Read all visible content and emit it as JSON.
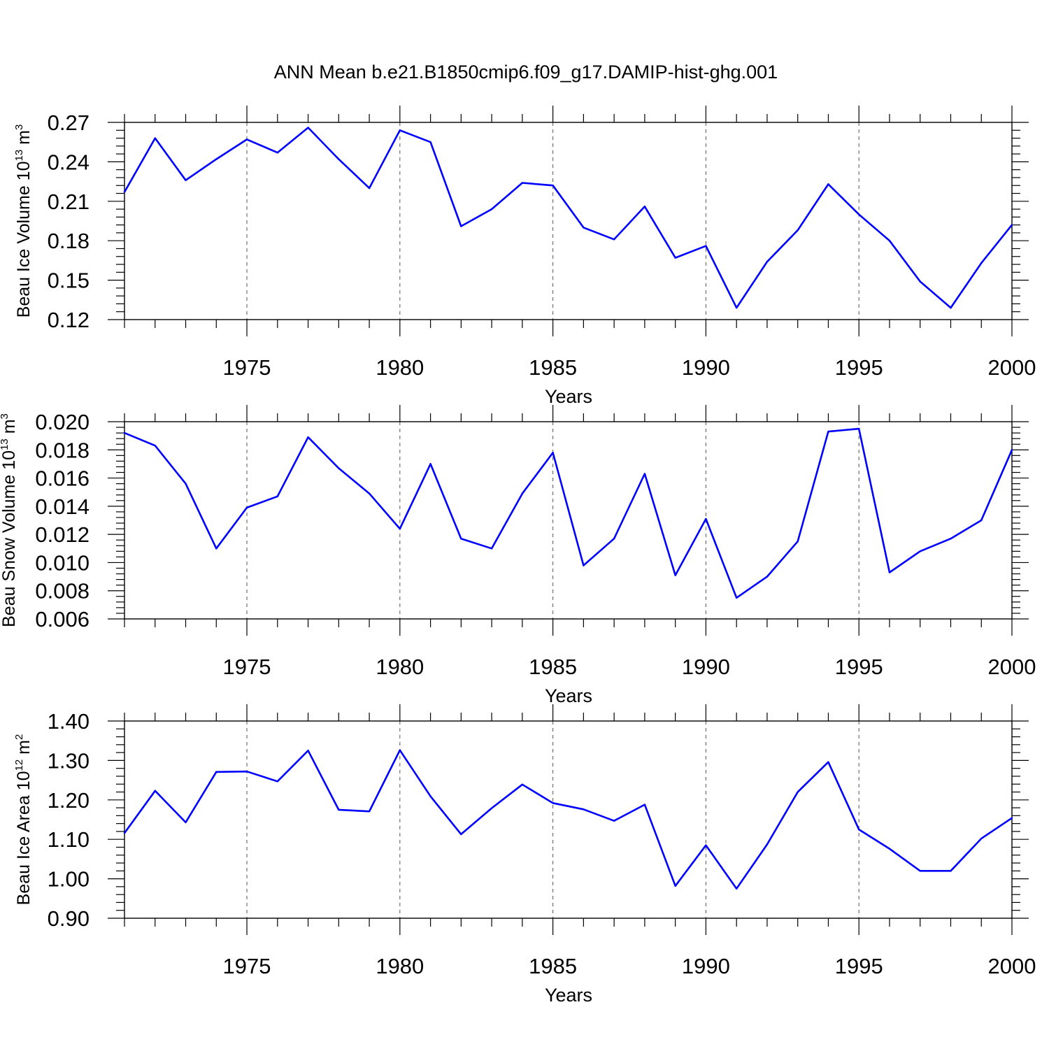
{
  "title": "ANN Mean b.e21.B1850cmip6.f09_g17.DAMIP-hist-ghg.001",
  "chart_data": [
    {
      "type": "line",
      "ylabel": "Beau Ice Volume 10",
      "ylabel_exp": "13",
      "ylabel_unit": " m",
      "ylabel_unit_exp": "3",
      "xlabel": "Years",
      "xlim": [
        1971,
        2000
      ],
      "ylim": [
        0.12,
        0.27
      ],
      "xticks": [
        "1975",
        "1980",
        "1985",
        "1990",
        "1995",
        "2000"
      ],
      "yticks": [
        "0.12",
        "0.15",
        "0.18",
        "0.21",
        "0.24",
        "0.27"
      ],
      "ytick_values": [
        0.12,
        0.15,
        0.18,
        0.21,
        0.24,
        0.27
      ],
      "yminor": 0.006,
      "grid": "dashed vertical at major x ticks",
      "color": "#0000ff",
      "x": [
        1971,
        1972,
        1973,
        1974,
        1975,
        1976,
        1977,
        1978,
        1979,
        1980,
        1981,
        1982,
        1983,
        1984,
        1985,
        1986,
        1987,
        1988,
        1989,
        1990,
        1991,
        1992,
        1993,
        1994,
        1995,
        1996,
        1997,
        1998,
        1999,
        2000
      ],
      "values": [
        0.217,
        0.258,
        0.226,
        0.242,
        0.257,
        0.247,
        0.266,
        0.242,
        0.22,
        0.264,
        0.255,
        0.191,
        0.204,
        0.224,
        0.222,
        0.19,
        0.181,
        0.206,
        0.167,
        0.176,
        0.129,
        0.164,
        0.188,
        0.223,
        0.2,
        0.18,
        0.149,
        0.129,
        0.163,
        0.192
      ]
    },
    {
      "type": "line",
      "ylabel": "Beau Snow Volume 10",
      "ylabel_exp": "13",
      "ylabel_unit": " m",
      "ylabel_unit_exp": "3",
      "xlabel": "Years",
      "xlim": [
        1971,
        2000
      ],
      "ylim": [
        0.006,
        0.02
      ],
      "xticks": [
        "1975",
        "1980",
        "1985",
        "1990",
        "1995",
        "2000"
      ],
      "yticks": [
        "0.006",
        "0.008",
        "0.010",
        "0.012",
        "0.014",
        "0.016",
        "0.018",
        "0.020"
      ],
      "ytick_values": [
        0.006,
        0.008,
        0.01,
        0.012,
        0.014,
        0.016,
        0.018,
        0.02
      ],
      "yminor": 0.0004,
      "grid": "dashed vertical at major x ticks",
      "color": "#0000ff",
      "x": [
        1971,
        1972,
        1973,
        1974,
        1975,
        1976,
        1977,
        1978,
        1979,
        1980,
        1981,
        1982,
        1983,
        1984,
        1985,
        1986,
        1987,
        1988,
        1989,
        1990,
        1991,
        1992,
        1993,
        1994,
        1995,
        1996,
        1997,
        1998,
        1999,
        2000
      ],
      "values": [
        0.0192,
        0.0183,
        0.0156,
        0.011,
        0.0139,
        0.0147,
        0.0189,
        0.0167,
        0.0149,
        0.0124,
        0.017,
        0.0117,
        0.011,
        0.0149,
        0.0178,
        0.0098,
        0.0117,
        0.0163,
        0.0091,
        0.0131,
        0.0075,
        0.009,
        0.0115,
        0.0193,
        0.0195,
        0.0093,
        0.0108,
        0.0117,
        0.013,
        0.018
      ]
    },
    {
      "type": "line",
      "ylabel": "Beau Ice Area 10",
      "ylabel_exp": "12",
      "ylabel_unit": " m",
      "ylabel_unit_exp": "2",
      "xlabel": "Years",
      "xlim": [
        1971,
        2000
      ],
      "ylim": [
        0.9,
        1.4
      ],
      "xticks": [
        "1975",
        "1980",
        "1985",
        "1990",
        "1995",
        "2000"
      ],
      "yticks": [
        "0.90",
        "1.00",
        "1.10",
        "1.20",
        "1.30",
        "1.40"
      ],
      "ytick_values": [
        0.9,
        1.0,
        1.1,
        1.2,
        1.3,
        1.4
      ],
      "yminor": 0.02,
      "grid": "dashed vertical at major x ticks",
      "color": "#0000ff",
      "x": [
        1971,
        1972,
        1973,
        1974,
        1975,
        1976,
        1977,
        1978,
        1979,
        1980,
        1981,
        1982,
        1983,
        1984,
        1985,
        1986,
        1987,
        1988,
        1989,
        1990,
        1991,
        1992,
        1993,
        1994,
        1995,
        1996,
        1997,
        1998,
        1999,
        2000
      ],
      "values": [
        1.116,
        1.223,
        1.143,
        1.271,
        1.272,
        1.247,
        1.325,
        1.175,
        1.171,
        1.326,
        1.209,
        1.113,
        1.179,
        1.239,
        1.192,
        1.176,
        1.147,
        1.188,
        0.982,
        1.085,
        0.975,
        1.087,
        1.22,
        1.296,
        1.125,
        1.076,
        1.02,
        1.02,
        1.102,
        1.154
      ]
    }
  ]
}
